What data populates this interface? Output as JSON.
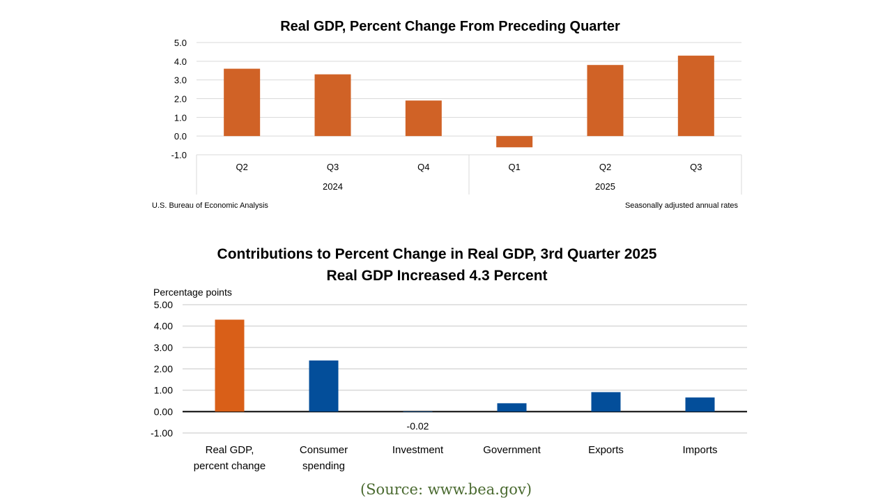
{
  "chart_data": [
    {
      "type": "bar",
      "title": "Real GDP, Percent Change From Preceding Quarter",
      "categories": [
        "Q2",
        "Q3",
        "Q4",
        "Q1",
        "Q2",
        "Q3"
      ],
      "groups": [
        {
          "label": "2024",
          "count": 3
        },
        {
          "label": "2025",
          "count": 3
        }
      ],
      "values": [
        3.6,
        3.3,
        1.9,
        -0.6,
        3.8,
        4.3
      ],
      "yticks": [
        "5.0",
        "4.0",
        "3.0",
        "2.0",
        "1.0",
        "0.0",
        "-1.0"
      ],
      "ylim": [
        -1,
        5
      ],
      "grid": true,
      "bar_color": "#d06226",
      "footer_left": "U.S. Bureau of Economic Analysis",
      "footer_right": "Seasonally adjusted annual rates"
    },
    {
      "type": "bar",
      "title": "Contributions to Percent Change in Real GDP, 3rd Quarter 2025",
      "subtitle": "Real GDP Increased 4.3 Percent",
      "ylabel": "Percentage points",
      "categories": [
        [
          "Real GDP,",
          "percent change"
        ],
        [
          "Consumer",
          "spending"
        ],
        [
          "Investment"
        ],
        [
          "Government"
        ],
        [
          "Exports"
        ],
        [
          "Imports"
        ]
      ],
      "values": [
        4.3,
        2.39,
        -0.02,
        0.39,
        0.91,
        0.66
      ],
      "data_labels": [
        "",
        "",
        "-0.02",
        "",
        "",
        ""
      ],
      "yticks": [
        "5.00",
        "4.00",
        "3.00",
        "2.00",
        "1.00",
        "0.00",
        "-1.00"
      ],
      "ylim": [
        -1,
        5
      ],
      "grid": true,
      "colors": [
        "#d95f18",
        "#034e9a",
        "#034e9a",
        "#034e9a",
        "#034e9a",
        "#034e9a"
      ]
    }
  ],
  "source": "(Source: www.bea.gov)"
}
